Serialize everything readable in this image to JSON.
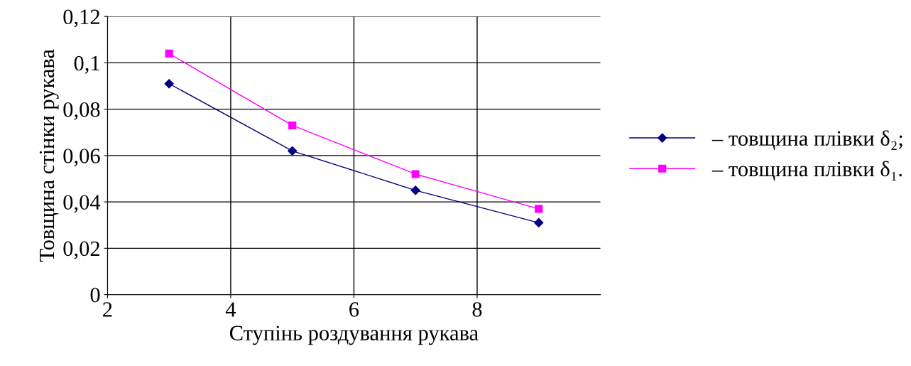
{
  "chart_data": {
    "type": "line",
    "xlabel": "Ступінь роздування рукава",
    "ylabel": "Товщина стінки рукава",
    "x": [
      3,
      5,
      7,
      9
    ],
    "series": [
      {
        "name": "– товщина плівки δ₂;",
        "color": "#000080",
        "marker": "diamond",
        "values": [
          0.091,
          0.062,
          0.045,
          0.031
        ]
      },
      {
        "name": "– товщина плівки δ₁.",
        "color": "#ff00ff",
        "marker": "square",
        "values": [
          0.104,
          0.073,
          0.052,
          0.037
        ]
      }
    ],
    "xlim": [
      2,
      10
    ],
    "xticks": [
      2,
      4,
      6,
      8
    ],
    "ylim": [
      0,
      0.12
    ],
    "yticks": [
      {
        "value": 0,
        "label": "0"
      },
      {
        "value": 0.02,
        "label": "0,02"
      },
      {
        "value": 0.04,
        "label": "0,04"
      },
      {
        "value": 0.06,
        "label": "0,06"
      },
      {
        "value": 0.08,
        "label": "0,08"
      },
      {
        "value": 0.1,
        "label": "0,1"
      },
      {
        "value": 0.12,
        "label": "0,12"
      }
    ],
    "grid": true,
    "legend": "right",
    "line_style": "solid"
  }
}
